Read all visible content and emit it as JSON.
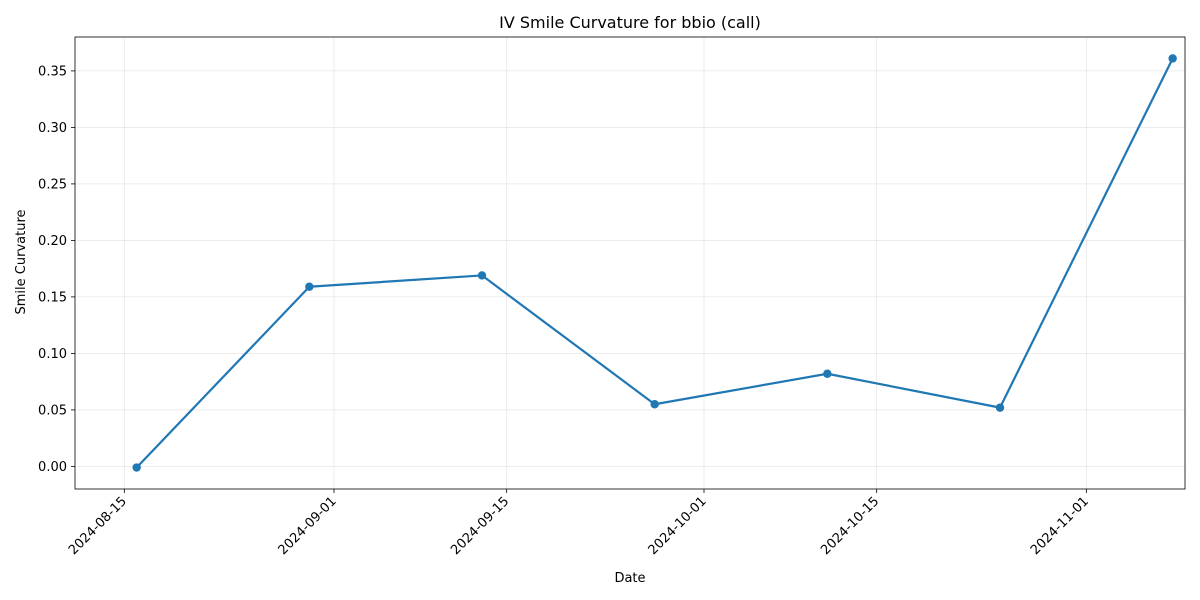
{
  "chart_data": {
    "type": "line",
    "title": "IV Smile Curvature for bbio (call)",
    "xlabel": "Date",
    "ylabel": "Smile Curvature",
    "x_type": "date",
    "xlim": [
      "2024-08-11",
      "2024-11-09"
    ],
    "ylim": [
      -0.02,
      0.38
    ],
    "x_ticks": [
      "2024-08-15",
      "2024-09-01",
      "2024-09-15",
      "2024-10-01",
      "2024-10-15",
      "2024-11-01"
    ],
    "y_ticks": [
      "0.00",
      "0.05",
      "0.10",
      "0.15",
      "0.20",
      "0.25",
      "0.30",
      "0.35"
    ],
    "grid": true,
    "marker": "circle",
    "line_color": "#1f77b4",
    "series": [
      {
        "x": [
          "2024-08-16",
          "2024-08-30",
          "2024-09-13",
          "2024-09-27",
          "2024-10-11",
          "2024-10-25",
          "2024-11-08"
        ],
        "values": [
          -0.001,
          0.159,
          0.169,
          0.055,
          0.082,
          0.052,
          0.361
        ]
      }
    ]
  }
}
